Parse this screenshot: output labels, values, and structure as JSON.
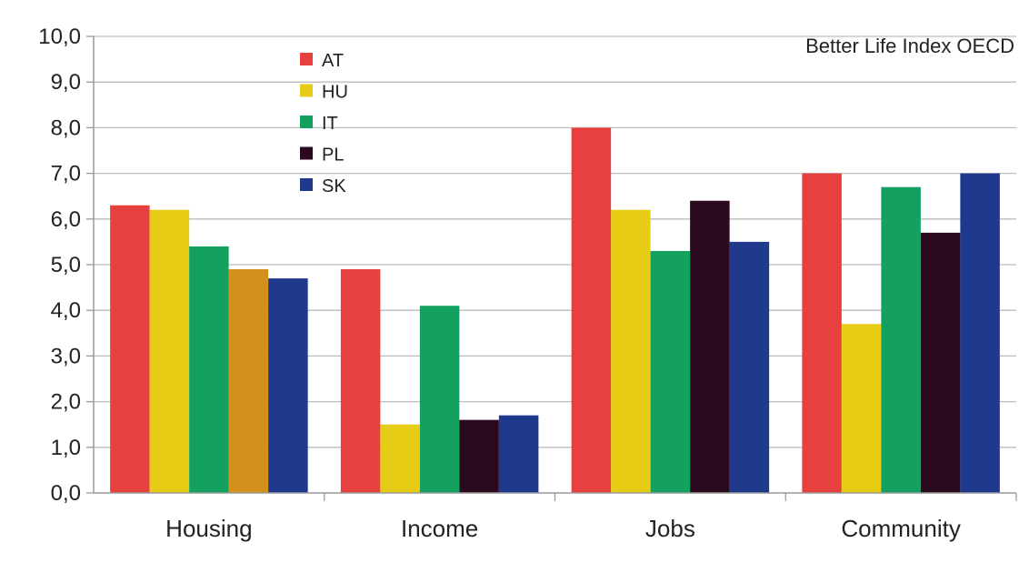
{
  "chart_data": {
    "type": "bar",
    "title": "Better Life Index OECD",
    "xlabel": "",
    "ylabel": "",
    "categories": [
      "Housing",
      "Income",
      "Jobs",
      "Community"
    ],
    "ylim": [
      0,
      10
    ],
    "yticks": [
      "0,0",
      "1,0",
      "2,0",
      "3,0",
      "4,0",
      "5,0",
      "6,0",
      "7,0",
      "8,0",
      "9,0",
      "10,0"
    ],
    "grid": true,
    "legend_position": "top-left",
    "series": [
      {
        "name": "AT",
        "color": "#e8403f",
        "values": [
          6.3,
          4.9,
          8.0,
          7.0
        ]
      },
      {
        "name": "HU",
        "color": "#e6cc14",
        "values": [
          6.2,
          1.5,
          6.2,
          3.7
        ]
      },
      {
        "name": "IT",
        "color": "#14a160",
        "values": [
          5.4,
          4.1,
          5.3,
          6.7
        ]
      },
      {
        "name": "PL",
        "color": "#2b0a1f",
        "values": [
          4.9,
          1.6,
          6.4,
          5.7
        ]
      },
      {
        "name": "SK",
        "color": "#1f3a8c",
        "values": [
          4.7,
          1.7,
          5.5,
          7.0
        ]
      }
    ],
    "highlight_colors": {
      "PL-Housing": "#d4901c"
    }
  }
}
